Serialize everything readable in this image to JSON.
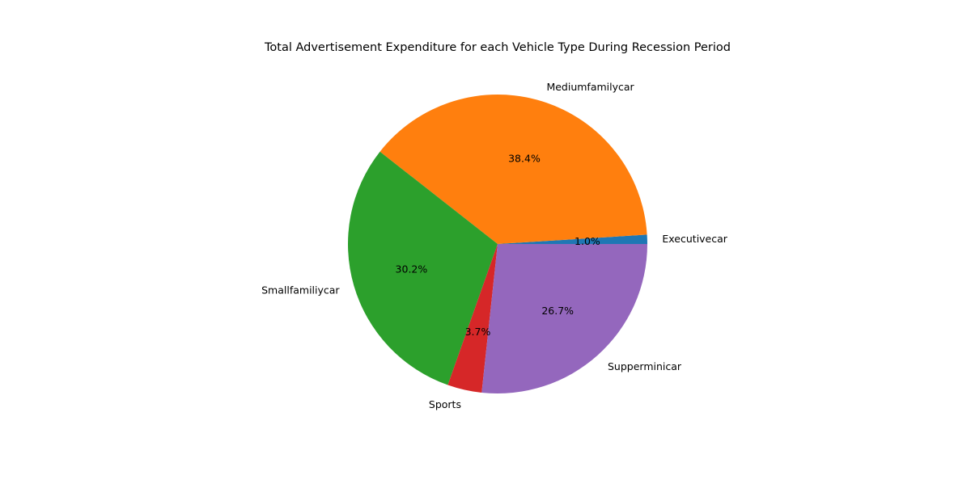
{
  "chart_data": {
    "type": "pie",
    "title": "Total Advertisement Expenditure for each Vehicle Type During Recession Period",
    "start_angle_deg": 0,
    "direction": "counterclockwise",
    "slices": [
      {
        "label": "Executivecar",
        "value": 1.0,
        "pct_text": "1.0%",
        "color": "#1f77b4"
      },
      {
        "label": "Mediumfamilycar",
        "value": 38.4,
        "pct_text": "38.4%",
        "color": "#ff7f0e"
      },
      {
        "label": "Smallfamiliycar",
        "value": 30.2,
        "pct_text": "30.2%",
        "color": "#2ca02c"
      },
      {
        "label": "Sports",
        "value": 3.7,
        "pct_text": "3.7%",
        "color": "#d62728"
      },
      {
        "label": "Supperminicar",
        "value": 26.7,
        "pct_text": "26.7%",
        "color": "#9467bd"
      }
    ]
  }
}
